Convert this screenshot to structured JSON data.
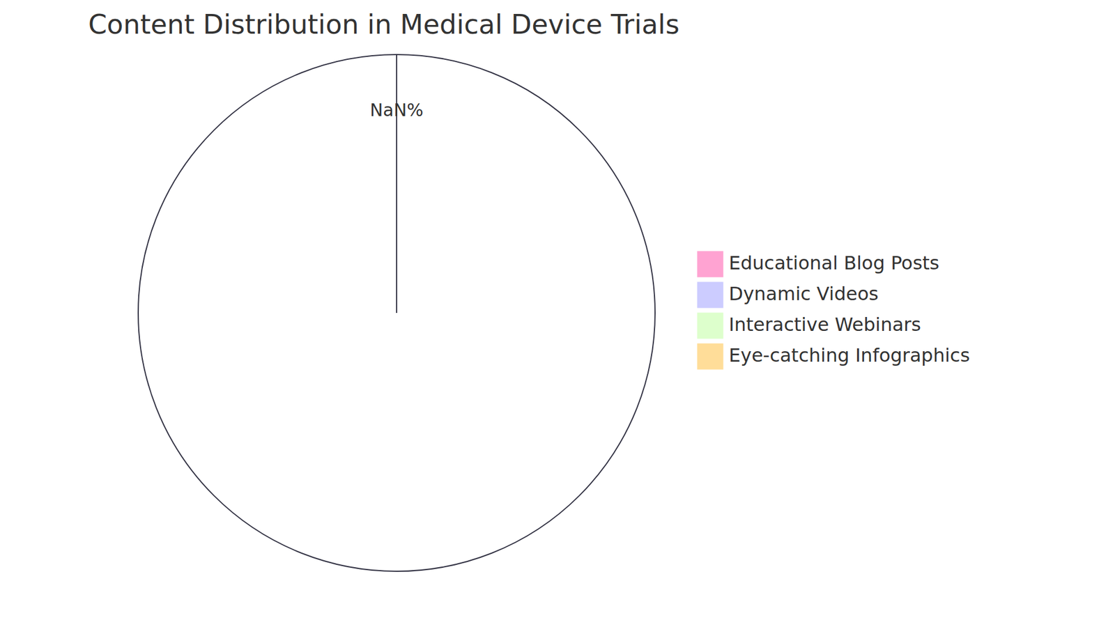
{
  "chart_data": {
    "type": "pie",
    "title": "Content Distribution in Medical Device Trials",
    "categories": [
      "Educational Blog Posts",
      "Dynamic Videos",
      "Interactive Webinars",
      "Eye-catching Infographics"
    ],
    "values": [
      null,
      null,
      null,
      null
    ],
    "colors": [
      "#ffa3d2",
      "#ccccff",
      "#ddffcc",
      "#ffdd99"
    ],
    "annotations": [
      "NaN%"
    ],
    "legend": "right"
  }
}
